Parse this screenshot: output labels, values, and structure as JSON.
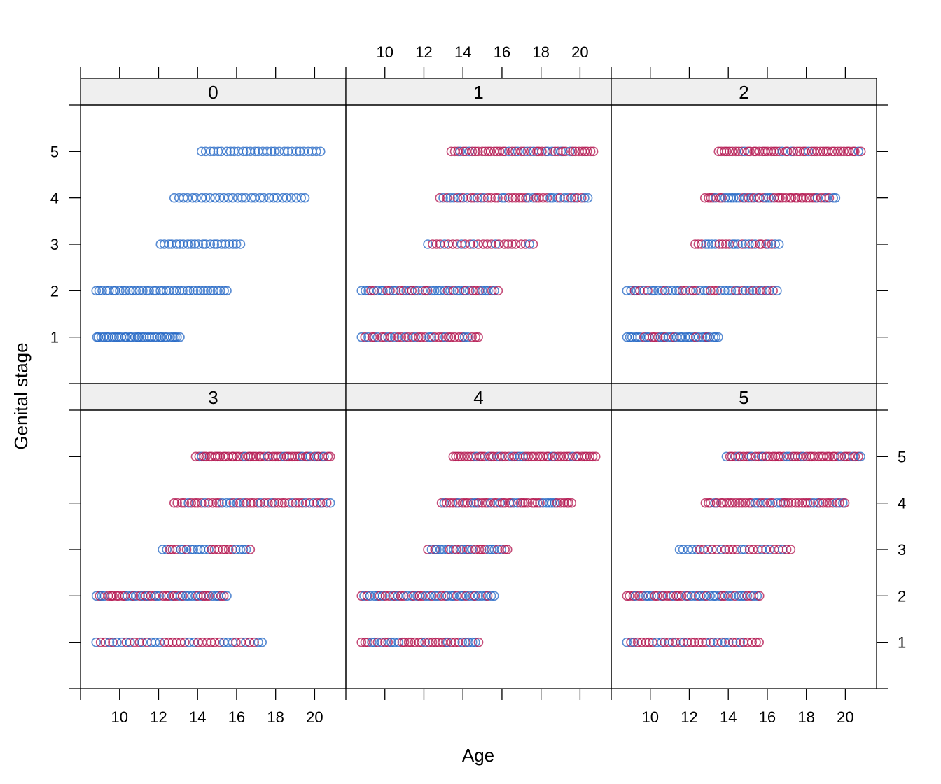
{
  "chart_data": {
    "type": "scatter",
    "title": "",
    "xlabel": "Age",
    "ylabel": "Genital stage",
    "xlim": [
      8,
      21.6
    ],
    "ylim": [
      0.0,
      6.0
    ],
    "x_ticks": [
      "10",
      "12",
      "14",
      "16",
      "18",
      "20"
    ],
    "y_ticks": [
      "1",
      "2",
      "3",
      "4",
      "5"
    ],
    "colors": {
      "blue": "#2166c4",
      "red": "#b2124c"
    },
    "panels": [
      {
        "label": "0",
        "points": [
          {
            "y": 5,
            "xmin": 14.2,
            "xmax": 20.3,
            "n": 30,
            "blue": 1.0
          },
          {
            "y": 4,
            "xmin": 12.8,
            "xmax": 19.5,
            "n": 30,
            "blue": 1.0
          },
          {
            "y": 3,
            "xmin": 12.1,
            "xmax": 16.2,
            "n": 22,
            "blue": 1.0
          },
          {
            "y": 2,
            "xmin": 8.8,
            "xmax": 15.5,
            "n": 40,
            "blue": 1.0
          },
          {
            "y": 1,
            "xmin": 8.8,
            "xmax": 13.1,
            "n": 34,
            "blue": 1.0
          }
        ]
      },
      {
        "label": "1",
        "points": [
          {
            "y": 5,
            "xmin": 13.4,
            "xmax": 20.7,
            "n": 48,
            "blue": 0.15
          },
          {
            "y": 4,
            "xmin": 12.8,
            "xmax": 20.4,
            "n": 44,
            "blue": 0.3
          },
          {
            "y": 3,
            "xmin": 12.2,
            "xmax": 17.6,
            "n": 26,
            "blue": 0.45
          },
          {
            "y": 2,
            "xmin": 8.8,
            "xmax": 15.8,
            "n": 44,
            "blue": 0.6
          },
          {
            "y": 1,
            "xmin": 8.8,
            "xmax": 14.8,
            "n": 36,
            "blue": 0.45
          }
        ]
      },
      {
        "label": "2",
        "points": [
          {
            "y": 5,
            "xmin": 13.5,
            "xmax": 20.8,
            "n": 50,
            "blue": 0.15
          },
          {
            "y": 4,
            "xmin": 12.8,
            "xmax": 19.5,
            "n": 46,
            "blue": 0.3
          },
          {
            "y": 3,
            "xmin": 12.3,
            "xmax": 16.6,
            "n": 26,
            "blue": 0.45
          },
          {
            "y": 2,
            "xmin": 8.8,
            "xmax": 16.5,
            "n": 44,
            "blue": 0.55
          },
          {
            "y": 1,
            "xmin": 8.8,
            "xmax": 13.5,
            "n": 34,
            "blue": 0.55
          }
        ]
      },
      {
        "label": "3",
        "points": [
          {
            "y": 5,
            "xmin": 13.9,
            "xmax": 20.8,
            "n": 50,
            "blue": 0.15
          },
          {
            "y": 4,
            "xmin": 12.8,
            "xmax": 20.8,
            "n": 46,
            "blue": 0.3
          },
          {
            "y": 3,
            "xmin": 12.2,
            "xmax": 16.7,
            "n": 26,
            "blue": 0.45
          },
          {
            "y": 2,
            "xmin": 8.8,
            "xmax": 15.5,
            "n": 46,
            "blue": 0.55
          },
          {
            "y": 1,
            "xmin": 8.8,
            "xmax": 17.3,
            "n": 40,
            "blue": 0.5
          }
        ]
      },
      {
        "label": "4",
        "points": [
          {
            "y": 5,
            "xmin": 13.5,
            "xmax": 20.8,
            "n": 50,
            "blue": 0.15
          },
          {
            "y": 4,
            "xmin": 12.9,
            "xmax": 19.6,
            "n": 46,
            "blue": 0.3
          },
          {
            "y": 3,
            "xmin": 12.2,
            "xmax": 16.3,
            "n": 26,
            "blue": 0.4
          },
          {
            "y": 2,
            "xmin": 8.8,
            "xmax": 15.6,
            "n": 44,
            "blue": 0.6
          },
          {
            "y": 1,
            "xmin": 8.8,
            "xmax": 14.8,
            "n": 36,
            "blue": 0.45
          }
        ]
      },
      {
        "label": "5",
        "points": [
          {
            "y": 5,
            "xmin": 13.9,
            "xmax": 20.8,
            "n": 48,
            "blue": 0.15
          },
          {
            "y": 4,
            "xmin": 12.8,
            "xmax": 20.0,
            "n": 46,
            "blue": 0.3
          },
          {
            "y": 3,
            "xmin": 11.5,
            "xmax": 17.2,
            "n": 28,
            "blue": 0.45
          },
          {
            "y": 2,
            "xmin": 8.8,
            "xmax": 15.6,
            "n": 44,
            "blue": 0.55
          },
          {
            "y": 1,
            "xmin": 8.8,
            "xmax": 15.6,
            "n": 36,
            "blue": 0.5
          }
        ]
      }
    ]
  }
}
